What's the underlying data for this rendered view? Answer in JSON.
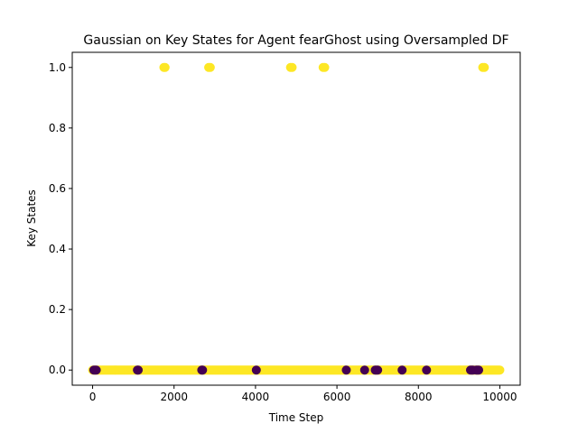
{
  "chart_data": {
    "type": "scatter",
    "title": "Gaussian on Key States for Agent fearGhost using Oversampled DF",
    "xlabel": "Time Step",
    "ylabel": "Key States",
    "xlim": [
      -500,
      10500
    ],
    "ylim": [
      -0.05,
      1.05
    ],
    "xticks": [
      0,
      2000,
      4000,
      6000,
      8000,
      10000
    ],
    "yticks": [
      0.0,
      0.2,
      0.4,
      0.6,
      0.8,
      1.0
    ],
    "xtick_labels": [
      "0",
      "2000",
      "4000",
      "6000",
      "8000",
      "10000"
    ],
    "ytick_labels": [
      "0.0",
      "0.2",
      "0.4",
      "0.6",
      "0.8",
      "1.0"
    ],
    "grid": false,
    "legend": "none",
    "colors": {
      "class_1": "#fde725",
      "class_0": "#440154"
    },
    "series": [
      {
        "class": 1,
        "note_color": "yellow",
        "points": [
          [
            1750,
            1.0
          ],
          [
            1780,
            1.0
          ],
          [
            2850,
            1.0
          ],
          [
            2890,
            1.0
          ],
          [
            4860,
            1.0
          ],
          [
            4900,
            1.0
          ],
          [
            5660,
            1.0
          ],
          [
            5700,
            1.0
          ],
          [
            9580,
            1.0
          ],
          [
            9620,
            1.0
          ]
        ],
        "baseline_range": [
          0,
          10000
        ],
        "baseline_y": 0.0
      },
      {
        "class": 0,
        "note_color": "purple",
        "points": [
          [
            30,
            0.0
          ],
          [
            60,
            0.0
          ],
          [
            90,
            0.0
          ],
          [
            1100,
            0.0
          ],
          [
            1120,
            0.0
          ],
          [
            2680,
            0.0
          ],
          [
            2700,
            0.0
          ],
          [
            4020,
            0.0
          ],
          [
            6230,
            0.0
          ],
          [
            6680,
            0.0
          ],
          [
            6940,
            0.0
          ],
          [
            6970,
            0.0
          ],
          [
            7000,
            0.0
          ],
          [
            7600,
            0.0
          ],
          [
            8200,
            0.0
          ],
          [
            9280,
            0.0
          ],
          [
            9310,
            0.0
          ],
          [
            9340,
            0.0
          ],
          [
            9420,
            0.0
          ],
          [
            9450,
            0.0
          ],
          [
            9480,
            0.0
          ]
        ]
      }
    ]
  }
}
